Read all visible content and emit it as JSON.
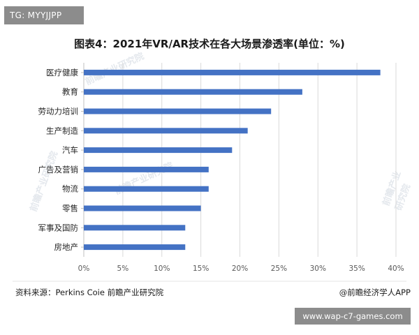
{
  "tag": "TG: MYYJJPP",
  "site_badge": "www.wap-c7-games.com",
  "source": "资料来源：Perkins Coie 前瞻产业研究院",
  "brand": "@前瞻经济学人APP",
  "watermark_text": "前瞻产业研究院",
  "colors": {
    "bar": "#4472c4",
    "grid": "#d9d9d9",
    "axis_text": "#595959",
    "label_text": "#262626"
  },
  "chart_data": {
    "type": "bar",
    "orientation": "horizontal",
    "title": "图表4：2021年VR/AR技术在各大场景渗透率(单位：%)",
    "categories": [
      "医疗健康",
      "教育",
      "劳动力培训",
      "生产制造",
      "汽车",
      "广告及营销",
      "物流",
      "零售",
      "军事及国防",
      "房地产"
    ],
    "values": [
      38,
      28,
      24,
      21,
      19,
      16,
      16,
      15,
      13,
      13
    ],
    "xlim": [
      0,
      40
    ],
    "xticks": [
      "0%",
      "5%",
      "10%",
      "15%",
      "20%",
      "25%",
      "30%",
      "35%",
      "40%"
    ],
    "grid": true,
    "legend": "none"
  }
}
